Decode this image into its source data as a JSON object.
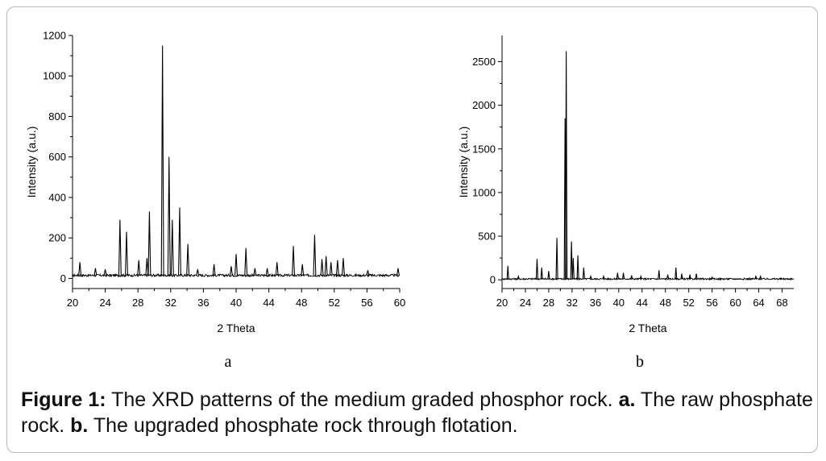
{
  "chart_data": [
    {
      "type": "line",
      "panel_label": "a",
      "xlabel": "2 Theta",
      "ylabel": "Intensity (a.u.)",
      "xlim": [
        20,
        60
      ],
      "ylim": [
        -50,
        1200
      ],
      "xticks": [
        20,
        24,
        28,
        32,
        36,
        40,
        44,
        48,
        52,
        56,
        60
      ],
      "yticks": [
        0,
        200,
        400,
        600,
        800,
        1000,
        1200
      ],
      "baseline": 15,
      "grid": false,
      "peaks": [
        {
          "x": 20.9,
          "y": 80
        },
        {
          "x": 22.8,
          "y": 50
        },
        {
          "x": 24.0,
          "y": 45
        },
        {
          "x": 25.8,
          "y": 290
        },
        {
          "x": 26.6,
          "y": 230
        },
        {
          "x": 28.1,
          "y": 90
        },
        {
          "x": 29.1,
          "y": 100
        },
        {
          "x": 29.4,
          "y": 330
        },
        {
          "x": 31.0,
          "y": 1150
        },
        {
          "x": 31.8,
          "y": 600
        },
        {
          "x": 32.2,
          "y": 290
        },
        {
          "x": 33.1,
          "y": 350
        },
        {
          "x": 34.1,
          "y": 170
        },
        {
          "x": 35.3,
          "y": 45
        },
        {
          "x": 37.3,
          "y": 70
        },
        {
          "x": 39.4,
          "y": 60
        },
        {
          "x": 40.0,
          "y": 120
        },
        {
          "x": 41.2,
          "y": 150
        },
        {
          "x": 42.3,
          "y": 50
        },
        {
          "x": 43.8,
          "y": 50
        },
        {
          "x": 45.0,
          "y": 80
        },
        {
          "x": 47.0,
          "y": 160
        },
        {
          "x": 48.1,
          "y": 70
        },
        {
          "x": 49.6,
          "y": 215
        },
        {
          "x": 50.5,
          "y": 95
        },
        {
          "x": 51.0,
          "y": 110
        },
        {
          "x": 51.6,
          "y": 80
        },
        {
          "x": 52.4,
          "y": 90
        },
        {
          "x": 53.1,
          "y": 100
        },
        {
          "x": 56.1,
          "y": 40
        },
        {
          "x": 59.8,
          "y": 50
        }
      ]
    },
    {
      "type": "line",
      "panel_label": "b",
      "xlabel": "2 Theta",
      "ylabel": "Intensity (a.u.)",
      "xlim": [
        20,
        70
      ],
      "ylim": [
        -100,
        2800
      ],
      "xticks": [
        20,
        24,
        28,
        32,
        36,
        40,
        44,
        48,
        52,
        56,
        60,
        64,
        68
      ],
      "yticks": [
        0,
        500,
        1000,
        1500,
        2000,
        2500
      ],
      "baseline": 10,
      "grid": false,
      "peaks": [
        {
          "x": 21.0,
          "y": 160
        },
        {
          "x": 22.8,
          "y": 40
        },
        {
          "x": 26.0,
          "y": 240
        },
        {
          "x": 26.8,
          "y": 140
        },
        {
          "x": 28.0,
          "y": 100
        },
        {
          "x": 29.4,
          "y": 480
        },
        {
          "x": 30.8,
          "y": 1850
        },
        {
          "x": 31.0,
          "y": 2620
        },
        {
          "x": 31.9,
          "y": 440
        },
        {
          "x": 32.2,
          "y": 250
        },
        {
          "x": 33.0,
          "y": 280
        },
        {
          "x": 34.0,
          "y": 140
        },
        {
          "x": 35.2,
          "y": 40
        },
        {
          "x": 37.4,
          "y": 40
        },
        {
          "x": 39.8,
          "y": 80
        },
        {
          "x": 40.8,
          "y": 80
        },
        {
          "x": 42.2,
          "y": 50
        },
        {
          "x": 43.8,
          "y": 40
        },
        {
          "x": 46.9,
          "y": 110
        },
        {
          "x": 48.4,
          "y": 60
        },
        {
          "x": 49.8,
          "y": 140
        },
        {
          "x": 50.8,
          "y": 70
        },
        {
          "x": 52.2,
          "y": 60
        },
        {
          "x": 53.3,
          "y": 70
        },
        {
          "x": 56.0,
          "y": 30
        },
        {
          "x": 63.5,
          "y": 40
        },
        {
          "x": 64.3,
          "y": 40
        }
      ]
    }
  ],
  "caption": {
    "label": "Figure 1:",
    "text_1": " The XRD patterns of the medium graded phosphor rock. ",
    "a_label": "a.",
    "text_2": " The raw phosphate rock. ",
    "b_label": "b.",
    "text_3": " The upgraded phosphate rock through flotation."
  }
}
